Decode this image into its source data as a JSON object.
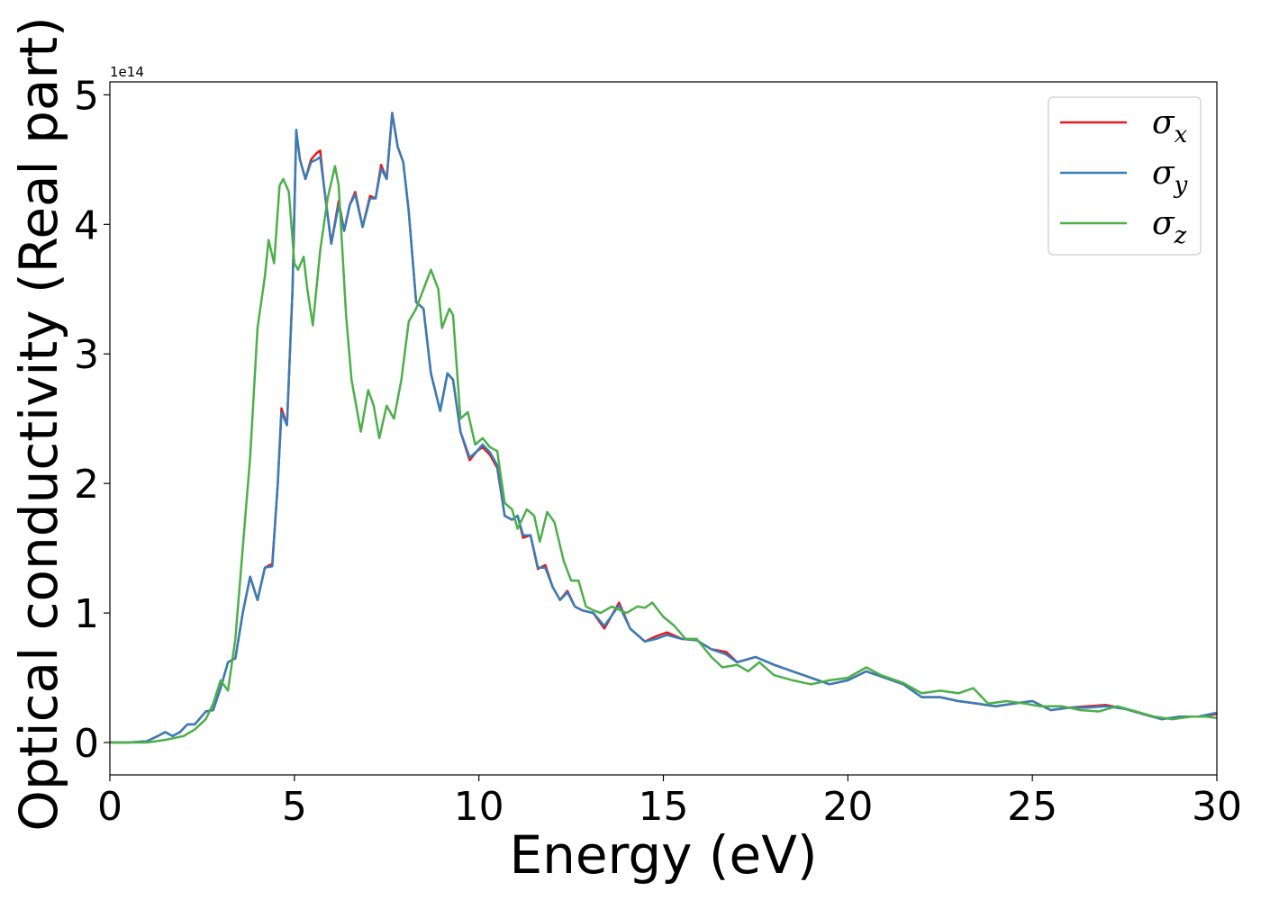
{
  "chart_data": {
    "type": "line",
    "xlabel": "Energy (eV)",
    "ylabel": "Optical conductivity (Real part)",
    "y_offset_text": "1e14",
    "xlim": [
      0,
      30
    ],
    "ylim": [
      -0.25,
      5.1
    ],
    "xticks": [
      0,
      5,
      10,
      15,
      20,
      25,
      30
    ],
    "xtick_labels": [
      "0",
      "5",
      "10",
      "15",
      "20",
      "25",
      "30"
    ],
    "yticks": [
      0,
      1,
      2,
      3,
      4,
      5
    ],
    "ytick_labels": [
      "0",
      "1",
      "2",
      "3",
      "4",
      "5"
    ],
    "grid": false,
    "legend_position": "top-right",
    "series": [
      {
        "name": "σx",
        "legend_symbol": "σ",
        "legend_sub": "x",
        "color": "#e41a1c",
        "points": [
          [
            0,
            0
          ],
          [
            0.5,
            0
          ],
          [
            1,
            0.01
          ],
          [
            1.3,
            0.05
          ],
          [
            1.5,
            0.08
          ],
          [
            1.7,
            0.05
          ],
          [
            1.9,
            0.08
          ],
          [
            2.1,
            0.14
          ],
          [
            2.3,
            0.14
          ],
          [
            2.6,
            0.24
          ],
          [
            2.8,
            0.25
          ],
          [
            3.0,
            0.42
          ],
          [
            3.2,
            0.62
          ],
          [
            3.4,
            0.65
          ],
          [
            3.6,
            1.0
          ],
          [
            3.8,
            1.28
          ],
          [
            4.0,
            1.1
          ],
          [
            4.2,
            1.35
          ],
          [
            4.4,
            1.38
          ],
          [
            4.55,
            2.0
          ],
          [
            4.65,
            2.58
          ],
          [
            4.8,
            2.45
          ],
          [
            4.95,
            3.5
          ],
          [
            5.05,
            4.72
          ],
          [
            5.15,
            4.5
          ],
          [
            5.3,
            4.35
          ],
          [
            5.45,
            4.5
          ],
          [
            5.6,
            4.55
          ],
          [
            5.7,
            4.57
          ],
          [
            5.8,
            4.3
          ],
          [
            6.0,
            3.85
          ],
          [
            6.2,
            4.18
          ],
          [
            6.35,
            3.95
          ],
          [
            6.5,
            4.15
          ],
          [
            6.65,
            4.25
          ],
          [
            6.85,
            3.98
          ],
          [
            7.05,
            4.22
          ],
          [
            7.2,
            4.2
          ],
          [
            7.35,
            4.46
          ],
          [
            7.5,
            4.35
          ],
          [
            7.65,
            4.86
          ],
          [
            7.8,
            4.6
          ],
          [
            7.95,
            4.48
          ],
          [
            8.1,
            4.1
          ],
          [
            8.3,
            3.4
          ],
          [
            8.5,
            3.35
          ],
          [
            8.7,
            2.85
          ],
          [
            8.95,
            2.56
          ],
          [
            9.15,
            2.85
          ],
          [
            9.3,
            2.8
          ],
          [
            9.5,
            2.4
          ],
          [
            9.75,
            2.18
          ],
          [
            9.95,
            2.25
          ],
          [
            10.1,
            2.28
          ],
          [
            10.3,
            2.22
          ],
          [
            10.5,
            2.12
          ],
          [
            10.7,
            1.75
          ],
          [
            10.9,
            1.72
          ],
          [
            11.05,
            1.75
          ],
          [
            11.2,
            1.58
          ],
          [
            11.4,
            1.6
          ],
          [
            11.6,
            1.34
          ],
          [
            11.8,
            1.37
          ],
          [
            12.0,
            1.2
          ],
          [
            12.2,
            1.1
          ],
          [
            12.4,
            1.17
          ],
          [
            12.6,
            1.05
          ],
          [
            12.8,
            1.02
          ],
          [
            13.1,
            1.0
          ],
          [
            13.4,
            0.88
          ],
          [
            13.8,
            1.08
          ],
          [
            14.1,
            0.88
          ],
          [
            14.5,
            0.78
          ],
          [
            14.8,
            0.82
          ],
          [
            15.1,
            0.85
          ],
          [
            15.5,
            0.8
          ],
          [
            15.9,
            0.79
          ],
          [
            16.3,
            0.72
          ],
          [
            16.7,
            0.7
          ],
          [
            17.0,
            0.62
          ],
          [
            17.5,
            0.66
          ],
          [
            18.0,
            0.6
          ],
          [
            18.5,
            0.55
          ],
          [
            19.0,
            0.5
          ],
          [
            19.5,
            0.45
          ],
          [
            20.0,
            0.48
          ],
          [
            20.5,
            0.55
          ],
          [
            21.0,
            0.5
          ],
          [
            21.5,
            0.45
          ],
          [
            22.0,
            0.35
          ],
          [
            22.5,
            0.35
          ],
          [
            23.0,
            0.32
          ],
          [
            23.5,
            0.3
          ],
          [
            24.0,
            0.28
          ],
          [
            24.5,
            0.3
          ],
          [
            25.0,
            0.32
          ],
          [
            25.5,
            0.25
          ],
          [
            26.0,
            0.27
          ],
          [
            26.5,
            0.28
          ],
          [
            27.0,
            0.29
          ],
          [
            27.5,
            0.26
          ],
          [
            28.0,
            0.22
          ],
          [
            28.5,
            0.18
          ],
          [
            29.0,
            0.2
          ],
          [
            29.5,
            0.2
          ],
          [
            30.0,
            0.22
          ]
        ]
      },
      {
        "name": "σy",
        "legend_symbol": "σ",
        "legend_sub": "y",
        "color": "#377eb8",
        "points": [
          [
            0,
            0
          ],
          [
            0.5,
            0
          ],
          [
            1,
            0.01
          ],
          [
            1.3,
            0.05
          ],
          [
            1.5,
            0.08
          ],
          [
            1.7,
            0.05
          ],
          [
            1.9,
            0.08
          ],
          [
            2.1,
            0.14
          ],
          [
            2.3,
            0.14
          ],
          [
            2.6,
            0.24
          ],
          [
            2.8,
            0.25
          ],
          [
            3.0,
            0.42
          ],
          [
            3.2,
            0.62
          ],
          [
            3.4,
            0.65
          ],
          [
            3.6,
            1.0
          ],
          [
            3.8,
            1.28
          ],
          [
            4.0,
            1.1
          ],
          [
            4.2,
            1.35
          ],
          [
            4.4,
            1.36
          ],
          [
            4.55,
            2.0
          ],
          [
            4.65,
            2.55
          ],
          [
            4.8,
            2.45
          ],
          [
            4.95,
            3.5
          ],
          [
            5.05,
            4.73
          ],
          [
            5.15,
            4.5
          ],
          [
            5.3,
            4.35
          ],
          [
            5.45,
            4.48
          ],
          [
            5.6,
            4.5
          ],
          [
            5.7,
            4.52
          ],
          [
            5.8,
            4.3
          ],
          [
            6.0,
            3.85
          ],
          [
            6.2,
            4.15
          ],
          [
            6.35,
            3.95
          ],
          [
            6.5,
            4.15
          ],
          [
            6.65,
            4.23
          ],
          [
            6.85,
            3.98
          ],
          [
            7.05,
            4.2
          ],
          [
            7.2,
            4.2
          ],
          [
            7.35,
            4.43
          ],
          [
            7.5,
            4.35
          ],
          [
            7.65,
            4.86
          ],
          [
            7.8,
            4.6
          ],
          [
            7.95,
            4.48
          ],
          [
            8.1,
            4.1
          ],
          [
            8.3,
            3.4
          ],
          [
            8.5,
            3.35
          ],
          [
            8.7,
            2.85
          ],
          [
            8.95,
            2.56
          ],
          [
            9.15,
            2.85
          ],
          [
            9.3,
            2.8
          ],
          [
            9.5,
            2.4
          ],
          [
            9.75,
            2.2
          ],
          [
            9.95,
            2.25
          ],
          [
            10.1,
            2.3
          ],
          [
            10.3,
            2.24
          ],
          [
            10.5,
            2.14
          ],
          [
            10.7,
            1.75
          ],
          [
            10.9,
            1.72
          ],
          [
            11.05,
            1.75
          ],
          [
            11.2,
            1.6
          ],
          [
            11.4,
            1.6
          ],
          [
            11.6,
            1.35
          ],
          [
            11.8,
            1.35
          ],
          [
            12.0,
            1.2
          ],
          [
            12.2,
            1.1
          ],
          [
            12.4,
            1.16
          ],
          [
            12.6,
            1.05
          ],
          [
            12.8,
            1.02
          ],
          [
            13.1,
            1.0
          ],
          [
            13.4,
            0.9
          ],
          [
            13.8,
            1.06
          ],
          [
            14.1,
            0.88
          ],
          [
            14.5,
            0.78
          ],
          [
            14.8,
            0.8
          ],
          [
            15.1,
            0.83
          ],
          [
            15.5,
            0.8
          ],
          [
            15.9,
            0.79
          ],
          [
            16.3,
            0.72
          ],
          [
            16.7,
            0.68
          ],
          [
            17.0,
            0.62
          ],
          [
            17.5,
            0.66
          ],
          [
            18.0,
            0.6
          ],
          [
            18.5,
            0.55
          ],
          [
            19.0,
            0.5
          ],
          [
            19.5,
            0.45
          ],
          [
            20.0,
            0.48
          ],
          [
            20.5,
            0.55
          ],
          [
            21.0,
            0.5
          ],
          [
            21.5,
            0.45
          ],
          [
            22.0,
            0.35
          ],
          [
            22.5,
            0.35
          ],
          [
            23.0,
            0.32
          ],
          [
            23.5,
            0.3
          ],
          [
            24.0,
            0.28
          ],
          [
            24.5,
            0.3
          ],
          [
            25.0,
            0.32
          ],
          [
            25.5,
            0.25
          ],
          [
            26.0,
            0.27
          ],
          [
            26.5,
            0.27
          ],
          [
            27.0,
            0.28
          ],
          [
            27.5,
            0.26
          ],
          [
            28.0,
            0.22
          ],
          [
            28.5,
            0.18
          ],
          [
            29.0,
            0.2
          ],
          [
            29.5,
            0.2
          ],
          [
            30.0,
            0.23
          ]
        ]
      },
      {
        "name": "σz",
        "legend_symbol": "σ",
        "legend_sub": "z",
        "color": "#4daf4a",
        "points": [
          [
            0,
            0
          ],
          [
            0.5,
            0
          ],
          [
            1,
            0.0
          ],
          [
            1.5,
            0.02
          ],
          [
            2.0,
            0.05
          ],
          [
            2.3,
            0.1
          ],
          [
            2.6,
            0.18
          ],
          [
            2.8,
            0.3
          ],
          [
            3.0,
            0.48
          ],
          [
            3.2,
            0.4
          ],
          [
            3.4,
            0.8
          ],
          [
            3.6,
            1.5
          ],
          [
            3.8,
            2.2
          ],
          [
            4.0,
            3.2
          ],
          [
            4.2,
            3.6
          ],
          [
            4.3,
            3.88
          ],
          [
            4.45,
            3.7
          ],
          [
            4.6,
            4.3
          ],
          [
            4.7,
            4.35
          ],
          [
            4.85,
            4.25
          ],
          [
            5.0,
            3.7
          ],
          [
            5.1,
            3.65
          ],
          [
            5.25,
            3.75
          ],
          [
            5.35,
            3.5
          ],
          [
            5.5,
            3.22
          ],
          [
            5.7,
            3.8
          ],
          [
            5.9,
            4.2
          ],
          [
            6.1,
            4.45
          ],
          [
            6.2,
            4.3
          ],
          [
            6.4,
            3.3
          ],
          [
            6.55,
            2.8
          ],
          [
            6.8,
            2.4
          ],
          [
            7.0,
            2.72
          ],
          [
            7.15,
            2.6
          ],
          [
            7.3,
            2.35
          ],
          [
            7.5,
            2.6
          ],
          [
            7.7,
            2.5
          ],
          [
            7.9,
            2.8
          ],
          [
            8.1,
            3.25
          ],
          [
            8.3,
            3.35
          ],
          [
            8.5,
            3.5
          ],
          [
            8.7,
            3.65
          ],
          [
            8.9,
            3.5
          ],
          [
            9.0,
            3.2
          ],
          [
            9.2,
            3.35
          ],
          [
            9.3,
            3.3
          ],
          [
            9.5,
            2.5
          ],
          [
            9.7,
            2.55
          ],
          [
            9.9,
            2.3
          ],
          [
            10.1,
            2.35
          ],
          [
            10.3,
            2.28
          ],
          [
            10.5,
            2.25
          ],
          [
            10.7,
            1.85
          ],
          [
            10.9,
            1.8
          ],
          [
            11.05,
            1.65
          ],
          [
            11.3,
            1.8
          ],
          [
            11.5,
            1.75
          ],
          [
            11.65,
            1.55
          ],
          [
            11.85,
            1.78
          ],
          [
            12.05,
            1.7
          ],
          [
            12.3,
            1.4
          ],
          [
            12.5,
            1.25
          ],
          [
            12.7,
            1.25
          ],
          [
            12.9,
            1.05
          ],
          [
            13.1,
            1.02
          ],
          [
            13.3,
            1.0
          ],
          [
            13.6,
            1.05
          ],
          [
            14.0,
            1.0
          ],
          [
            14.3,
            1.05
          ],
          [
            14.5,
            1.04
          ],
          [
            14.7,
            1.08
          ],
          [
            15.0,
            0.97
          ],
          [
            15.3,
            0.9
          ],
          [
            15.6,
            0.8
          ],
          [
            15.9,
            0.8
          ],
          [
            16.3,
            0.66
          ],
          [
            16.6,
            0.58
          ],
          [
            17.0,
            0.6
          ],
          [
            17.3,
            0.55
          ],
          [
            17.6,
            0.62
          ],
          [
            18.0,
            0.52
          ],
          [
            18.5,
            0.48
          ],
          [
            19.0,
            0.45
          ],
          [
            19.5,
            0.48
          ],
          [
            20.0,
            0.5
          ],
          [
            20.5,
            0.58
          ],
          [
            20.9,
            0.52
          ],
          [
            21.5,
            0.46
          ],
          [
            22.0,
            0.38
          ],
          [
            22.5,
            0.4
          ],
          [
            23.0,
            0.38
          ],
          [
            23.4,
            0.42
          ],
          [
            23.8,
            0.3
          ],
          [
            24.3,
            0.32
          ],
          [
            24.8,
            0.3
          ],
          [
            25.2,
            0.28
          ],
          [
            25.8,
            0.28
          ],
          [
            26.3,
            0.25
          ],
          [
            26.8,
            0.24
          ],
          [
            27.3,
            0.28
          ],
          [
            27.8,
            0.24
          ],
          [
            28.3,
            0.2
          ],
          [
            28.8,
            0.18
          ],
          [
            29.3,
            0.2
          ],
          [
            29.7,
            0.2
          ],
          [
            30.0,
            0.19
          ]
        ]
      }
    ]
  }
}
